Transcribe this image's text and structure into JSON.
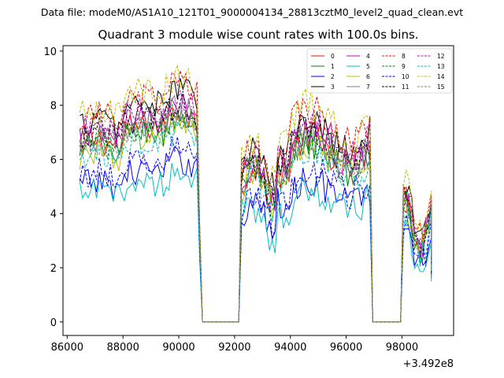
{
  "suptitle": "Data file: modeM0/AS1A10_121T01_9000004134_28813cztM0_level2_quad_clean.evt",
  "chart_data": {
    "type": "line",
    "title": "Quadrant 3 module wise count rates with 100.0s bins.",
    "xlabel": "",
    "ylabel": "",
    "x_offset_label": "+3.492e8",
    "xlim": [
      85850,
      99850
    ],
    "ylim": [
      -0.5,
      10.2
    ],
    "xticks": [
      86000,
      88000,
      90000,
      92000,
      94000,
      96000,
      98000
    ],
    "xtick_labels": [
      "86000",
      "88000",
      "90000",
      "92000",
      "94000",
      "96000",
      "98000"
    ],
    "yticks": [
      0,
      2,
      4,
      6,
      8,
      10
    ],
    "ytick_labels": [
      "0",
      "2",
      "4",
      "6",
      "8",
      "10"
    ],
    "legend": {
      "location": "top-right",
      "columns": 4,
      "entries": [
        "0",
        "1",
        "2",
        "3",
        "4",
        "5",
        "6",
        "7",
        "8",
        "9",
        "10",
        "11",
        "12",
        "13",
        "14",
        "15"
      ]
    },
    "segments": [
      {
        "start": 86450,
        "end": 90650,
        "edge_end": 90750,
        "zero_until": 92150
      },
      {
        "start": 92250,
        "end": 96850,
        "edge_start": 92150,
        "edge_end": 96950,
        "zero_until": 97950
      },
      {
        "start": 98050,
        "end": 99050,
        "edge_start": 97950,
        "edge_end": 99050
      }
    ],
    "series": [
      {
        "name": "0",
        "color": "#ff0000",
        "dash": "solid",
        "level": 7.0,
        "phase": 0.3
      },
      {
        "name": "1",
        "color": "#008000",
        "dash": "solid",
        "level": 6.8,
        "phase": 1.1
      },
      {
        "name": "2",
        "color": "#0000ff",
        "dash": "solid",
        "level": 5.4,
        "phase": 2.0
      },
      {
        "name": "3",
        "color": "#000000",
        "dash": "solid",
        "level": 7.8,
        "phase": 2.7
      },
      {
        "name": "4",
        "color": "#bf00bf",
        "dash": "solid",
        "level": 7.2,
        "phase": 3.5
      },
      {
        "name": "5",
        "color": "#00bfbf",
        "dash": "solid",
        "level": 5.0,
        "phase": 4.2
      },
      {
        "name": "6",
        "color": "#bfbf00",
        "dash": "solid",
        "level": 6.6,
        "phase": 5.0
      },
      {
        "name": "7",
        "color": "#808080",
        "dash": "solid",
        "level": 7.1,
        "phase": 5.8
      },
      {
        "name": "8",
        "color": "#ff0000",
        "dash": "dashed",
        "level": 8.0,
        "phase": 0.7
      },
      {
        "name": "9",
        "color": "#008000",
        "dash": "dashed",
        "level": 6.9,
        "phase": 1.5
      },
      {
        "name": "10",
        "color": "#0000ff",
        "dash": "dashed",
        "level": 5.8,
        "phase": 2.3
      },
      {
        "name": "11",
        "color": "#000000",
        "dash": "dashed",
        "level": 7.3,
        "phase": 3.1
      },
      {
        "name": "12",
        "color": "#bf00bf",
        "dash": "dashed",
        "level": 7.5,
        "phase": 3.9
      },
      {
        "name": "13",
        "color": "#00bfbf",
        "dash": "dashed",
        "level": 6.4,
        "phase": 4.6
      },
      {
        "name": "14",
        "color": "#bfbf00",
        "dash": "dashed",
        "level": 8.2,
        "phase": 5.4
      },
      {
        "name": "15",
        "color": "#808080",
        "dash": "dashed",
        "level": 7.0,
        "phase": 6.1
      }
    ]
  }
}
